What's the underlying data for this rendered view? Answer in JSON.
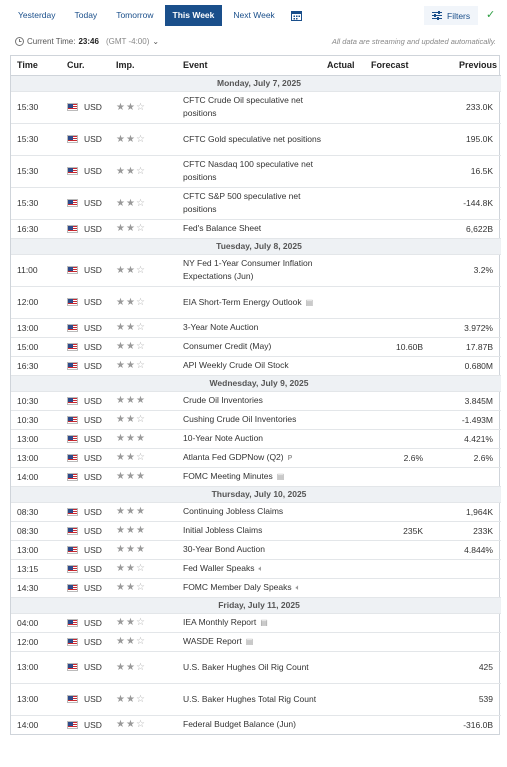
{
  "tabs": [
    {
      "label": "Yesterday",
      "active": false
    },
    {
      "label": "Today",
      "active": false
    },
    {
      "label": "Tomorrow",
      "active": false
    },
    {
      "label": "This Week",
      "active": true
    },
    {
      "label": "Next Week",
      "active": false
    }
  ],
  "filters_label": "Filters",
  "current_time": {
    "prefix": "Current Time:",
    "value": "23:46",
    "tz": "(GMT -4:00)"
  },
  "stream_note": "All data are streaming and updated automatically.",
  "columns": [
    "Time",
    "Cur.",
    "Imp.",
    "Event",
    "Actual",
    "Forecast",
    "Previous"
  ],
  "days": [
    {
      "title": "Monday, July 7, 2025",
      "rows": [
        {
          "time": "15:30",
          "cur": "USD",
          "imp": 2,
          "event": "CFTC Crude Oil speculative net positions",
          "actual": "",
          "forecast": "",
          "previous": "233.0K",
          "tall": true
        },
        {
          "time": "15:30",
          "cur": "USD",
          "imp": 2,
          "event": "CFTC Gold speculative net positions",
          "actual": "",
          "forecast": "",
          "previous": "195.0K",
          "tall": true
        },
        {
          "time": "15:30",
          "cur": "USD",
          "imp": 2,
          "event": "CFTC Nasdaq 100 speculative net positions",
          "actual": "",
          "forecast": "",
          "previous": "16.5K",
          "tall": true
        },
        {
          "time": "15:30",
          "cur": "USD",
          "imp": 2,
          "event": "CFTC S&P 500 speculative net positions",
          "actual": "",
          "forecast": "",
          "previous": "-144.8K",
          "tall": true
        },
        {
          "time": "16:30",
          "cur": "USD",
          "imp": 2,
          "event": "Fed's Balance Sheet",
          "actual": "",
          "forecast": "",
          "previous": "6,622B"
        }
      ]
    },
    {
      "title": "Tuesday, July 8, 2025",
      "rows": [
        {
          "time": "11:00",
          "cur": "USD",
          "imp": 2,
          "event": "NY Fed 1-Year Consumer Inflation Expectations (Jun)",
          "actual": "",
          "forecast": "",
          "previous": "3.2%",
          "tall": true
        },
        {
          "time": "12:00",
          "cur": "USD",
          "imp": 2,
          "event": "EIA Short-Term Energy Outlook",
          "icon": "doc",
          "actual": "",
          "forecast": "",
          "previous": "",
          "tall": true
        },
        {
          "time": "13:00",
          "cur": "USD",
          "imp": 2,
          "event": "3-Year Note Auction",
          "actual": "",
          "forecast": "",
          "previous": "3.972%"
        },
        {
          "time": "15:00",
          "cur": "USD",
          "imp": 2,
          "event": "Consumer Credit (May)",
          "actual": "",
          "forecast": "10.60B",
          "previous": "17.87B"
        },
        {
          "time": "16:30",
          "cur": "USD",
          "imp": 2,
          "event": "API Weekly Crude Oil Stock",
          "actual": "",
          "forecast": "",
          "previous": "0.680M"
        }
      ]
    },
    {
      "title": "Wednesday, July 9, 2025",
      "rows": [
        {
          "time": "10:30",
          "cur": "USD",
          "imp": 3,
          "event": "Crude Oil Inventories",
          "actual": "",
          "forecast": "",
          "previous": "3.845M"
        },
        {
          "time": "10:30",
          "cur": "USD",
          "imp": 2,
          "event": "Cushing Crude Oil Inventories",
          "actual": "",
          "forecast": "",
          "previous": "-1.493M"
        },
        {
          "time": "13:00",
          "cur": "USD",
          "imp": 3,
          "event": "10-Year Note Auction",
          "actual": "",
          "forecast": "",
          "previous": "4.421%"
        },
        {
          "time": "13:00",
          "cur": "USD",
          "imp": 2,
          "event": "Atlanta Fed GDPNow (Q2)",
          "icon": "p",
          "actual": "",
          "forecast": "2.6%",
          "previous": "2.6%"
        },
        {
          "time": "14:00",
          "cur": "USD",
          "imp": 3,
          "event": "FOMC Meeting Minutes",
          "icon": "doc",
          "actual": "",
          "forecast": "",
          "previous": ""
        }
      ]
    },
    {
      "title": "Thursday, July 10, 2025",
      "rows": [
        {
          "time": "08:30",
          "cur": "USD",
          "imp": 3,
          "event": "Continuing Jobless Claims",
          "actual": "",
          "forecast": "",
          "previous": "1,964K"
        },
        {
          "time": "08:30",
          "cur": "USD",
          "imp": 3,
          "event": "Initial Jobless Claims",
          "actual": "",
          "forecast": "235K",
          "previous": "233K"
        },
        {
          "time": "13:00",
          "cur": "USD",
          "imp": 3,
          "event": "30-Year Bond Auction",
          "actual": "",
          "forecast": "",
          "previous": "4.844%"
        },
        {
          "time": "13:15",
          "cur": "USD",
          "imp": 2,
          "event": "Fed Waller Speaks",
          "icon": "speaker",
          "actual": "",
          "forecast": "",
          "previous": ""
        },
        {
          "time": "14:30",
          "cur": "USD",
          "imp": 2,
          "event": "FOMC Member Daly Speaks",
          "icon": "speaker",
          "actual": "",
          "forecast": "",
          "previous": ""
        }
      ]
    },
    {
      "title": "Friday, July 11, 2025",
      "rows": [
        {
          "time": "04:00",
          "cur": "USD",
          "imp": 2,
          "event": "IEA Monthly Report",
          "icon": "doc",
          "actual": "",
          "forecast": "",
          "previous": ""
        },
        {
          "time": "12:00",
          "cur": "USD",
          "imp": 2,
          "event": "WASDE Report",
          "icon": "doc",
          "actual": "",
          "forecast": "",
          "previous": ""
        },
        {
          "time": "13:00",
          "cur": "USD",
          "imp": 2,
          "event": "U.S. Baker Hughes Oil Rig Count",
          "actual": "",
          "forecast": "",
          "previous": "425",
          "tall": true
        },
        {
          "time": "13:00",
          "cur": "USD",
          "imp": 2,
          "event": "U.S. Baker Hughes Total Rig Count",
          "actual": "",
          "forecast": "",
          "previous": "539",
          "tall": true
        },
        {
          "time": "14:00",
          "cur": "USD",
          "imp": 2,
          "event": "Federal Budget Balance (Jun)",
          "actual": "",
          "forecast": "",
          "previous": "-316.0B"
        }
      ]
    }
  ]
}
